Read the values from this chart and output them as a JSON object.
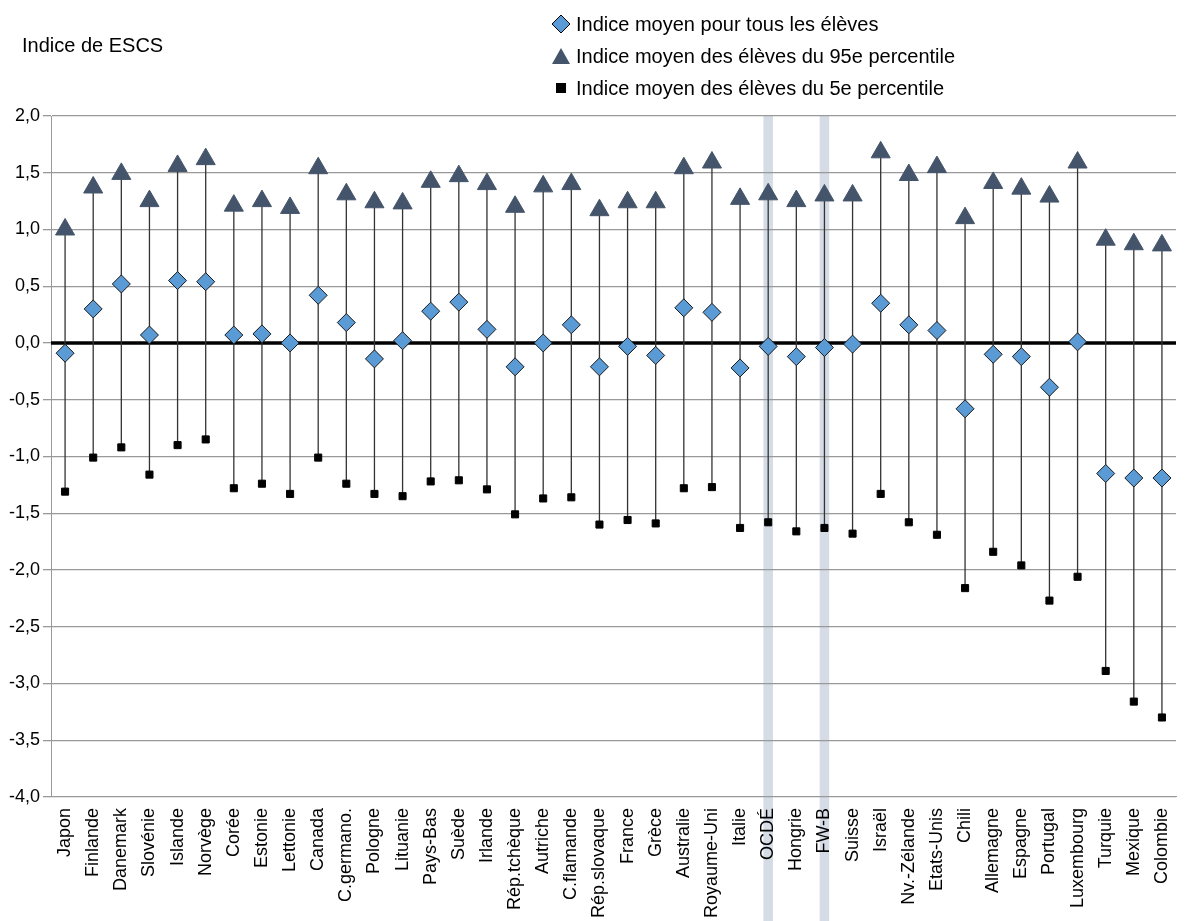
{
  "chart_data": {
    "type": "scatter",
    "ylabel": "Indice de ESCS",
    "categories": [
      "Japon",
      "Finlande",
      "Danemark",
      "Slovénie",
      "Islande",
      "Norvège",
      "Corée",
      "Estonie",
      "Lettonie",
      "Canada",
      "C.germano.",
      "Pologne",
      "Lituanie",
      "Pays-Bas",
      "Suède",
      "Irlande",
      "Rép.tchèque",
      "Autriche",
      "C.flamande",
      "Rép.slovaque",
      "France",
      "Grèce",
      "Australie",
      "Royaume-Uni",
      "Italie",
      "OCDÉ",
      "Hongrie",
      "FW-B",
      "Suisse",
      "Israël",
      "Nv.-Zélande",
      "Etats-Unis",
      "Chili",
      "Allemagne",
      "Espagne",
      "Portugal",
      "Luxembourg",
      "Turquie",
      "Mexique",
      "Colombie"
    ],
    "series": [
      {
        "name": "Indice moyen pour tous les élèves",
        "color": "#5b9bd5",
        "marker": "diamond",
        "values": [
          -0.09,
          0.3,
          0.52,
          0.07,
          0.55,
          0.54,
          0.07,
          0.08,
          0.0,
          0.42,
          0.18,
          -0.14,
          0.02,
          0.28,
          0.36,
          0.12,
          -0.21,
          0.0,
          0.16,
          -0.21,
          -0.03,
          -0.11,
          0.31,
          0.27,
          -0.22,
          -0.03,
          -0.12,
          -0.04,
          -0.01,
          0.35,
          0.16,
          0.11,
          -0.58,
          -0.1,
          -0.12,
          -0.39,
          0.01,
          -1.15,
          -1.19,
          -1.19
        ]
      },
      {
        "name": "Indice moyen des élèves du 95e percentile",
        "color": "#44546a",
        "marker": "triangle",
        "values": [
          1.0,
          1.37,
          1.49,
          1.25,
          1.56,
          1.62,
          1.21,
          1.25,
          1.19,
          1.54,
          1.31,
          1.24,
          1.23,
          1.42,
          1.47,
          1.4,
          1.2,
          1.38,
          1.4,
          1.17,
          1.24,
          1.24,
          1.54,
          1.59,
          1.27,
          1.31,
          1.25,
          1.3,
          1.3,
          1.68,
          1.48,
          1.55,
          1.1,
          1.41,
          1.36,
          1.29,
          1.59,
          0.91,
          0.87,
          0.86
        ]
      },
      {
        "name": "Indice moyen des élèves du 5e percentile",
        "color": "#000000",
        "marker": "square",
        "values": [
          -1.31,
          -1.01,
          -0.92,
          -1.16,
          -0.9,
          -0.85,
          -1.28,
          -1.24,
          -1.33,
          -1.01,
          -1.24,
          -1.33,
          -1.35,
          -1.22,
          -1.21,
          -1.29,
          -1.51,
          -1.37,
          -1.36,
          -1.6,
          -1.56,
          -1.59,
          -1.28,
          -1.27,
          -1.63,
          -1.58,
          -1.66,
          -1.63,
          -1.68,
          -1.33,
          -1.58,
          -1.69,
          -2.16,
          -1.84,
          -1.96,
          -2.27,
          -2.06,
          -2.89,
          -3.16,
          -3.3
        ]
      }
    ],
    "ylim": [
      -4,
      2
    ],
    "yticks": [
      {
        "value": 2,
        "label": "2,0"
      },
      {
        "value": 1.5,
        "label": "1,5"
      },
      {
        "value": 1,
        "label": "1,0"
      },
      {
        "value": 0.5,
        "label": "0,5"
      },
      {
        "value": 0,
        "label": "0,0"
      },
      {
        "value": -0.5,
        "label": "-0,5"
      },
      {
        "value": -1,
        "label": "-1,0"
      },
      {
        "value": -1.5,
        "label": "-1,5"
      },
      {
        "value": -2,
        "label": "-2,0"
      },
      {
        "value": -2.5,
        "label": "-2,5"
      },
      {
        "value": -3,
        "label": "-3,0"
      },
      {
        "value": -3.5,
        "label": "-3,5"
      },
      {
        "value": -4,
        "label": "-4,0"
      }
    ],
    "ref_lines": [
      {
        "axis": "y",
        "value": 0,
        "color": "#000000"
      }
    ],
    "bands": [
      {
        "axis": "x",
        "from": "OCDÉ",
        "to": "OCDÉ",
        "color": "#d6dce5"
      },
      {
        "axis": "x",
        "from": "FW-B",
        "to": "FW-B",
        "color": "#d6dce5"
      }
    ],
    "grid": "y",
    "legend": "top right"
  }
}
